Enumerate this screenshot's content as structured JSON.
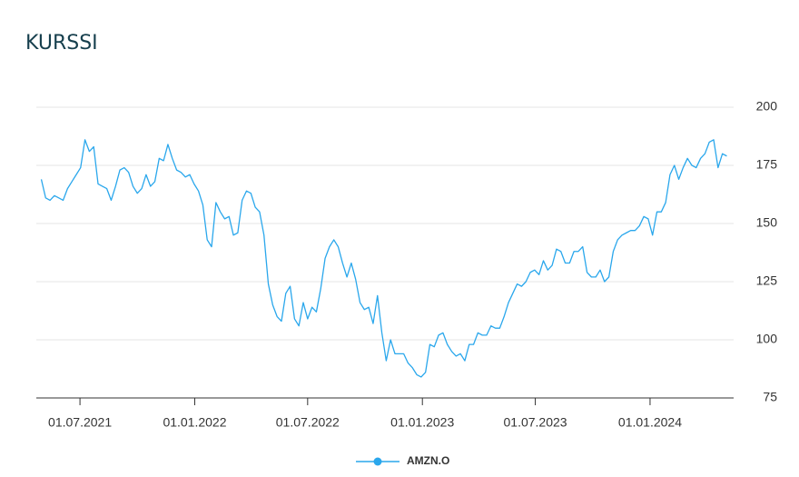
{
  "chart_data": {
    "type": "line",
    "title": "KURSSI",
    "x": [
      "30.04.2021",
      "07.05.2021",
      "14.05.2021",
      "21.05.2021",
      "28.05.2021",
      "04.06.2021",
      "11.06.2021",
      "18.06.2021",
      "25.06.2021",
      "02.07.2021",
      "09.07.2021",
      "16.07.2021",
      "23.07.2021",
      "30.07.2021",
      "06.08.2021",
      "13.08.2021",
      "20.08.2021",
      "27.08.2021",
      "03.09.2021",
      "10.09.2021",
      "17.09.2021",
      "24.09.2021",
      "01.10.2021",
      "08.10.2021",
      "15.10.2021",
      "22.10.2021",
      "29.10.2021",
      "05.11.2021",
      "12.11.2021",
      "19.11.2021",
      "26.11.2021",
      "03.12.2021",
      "10.12.2021",
      "17.12.2021",
      "24.12.2021",
      "31.12.2021",
      "07.01.2022",
      "14.01.2022",
      "21.01.2022",
      "28.01.2022",
      "04.02.2022",
      "11.02.2022",
      "18.02.2022",
      "25.02.2022",
      "04.03.2022",
      "11.03.2022",
      "18.03.2022",
      "25.03.2022",
      "01.04.2022",
      "08.04.2022",
      "15.04.2022",
      "22.04.2022",
      "29.04.2022",
      "06.05.2022",
      "13.05.2022",
      "20.05.2022",
      "27.05.2022",
      "03.06.2022",
      "10.06.2022",
      "17.06.2022",
      "24.06.2022",
      "01.07.2022",
      "08.07.2022",
      "15.07.2022",
      "22.07.2022",
      "29.07.2022",
      "05.08.2022",
      "12.08.2022",
      "19.08.2022",
      "26.08.2022",
      "02.09.2022",
      "09.09.2022",
      "16.09.2022",
      "23.09.2022",
      "30.09.2022",
      "07.10.2022",
      "14.10.2022",
      "21.10.2022",
      "28.10.2022",
      "04.11.2022",
      "11.11.2022",
      "18.11.2022",
      "25.11.2022",
      "02.12.2022",
      "09.12.2022",
      "16.12.2022",
      "23.12.2022",
      "30.12.2022",
      "06.01.2023",
      "13.01.2023",
      "20.01.2023",
      "27.01.2023",
      "03.02.2023",
      "10.02.2023",
      "17.02.2023",
      "24.02.2023",
      "03.03.2023",
      "10.03.2023",
      "17.03.2023",
      "24.03.2023",
      "31.03.2023",
      "07.04.2023",
      "14.04.2023",
      "21.04.2023",
      "28.04.2023",
      "05.05.2023",
      "12.05.2023",
      "19.05.2023",
      "26.05.2023",
      "02.06.2023",
      "09.06.2023",
      "16.06.2023",
      "23.06.2023",
      "30.06.2023",
      "07.07.2023",
      "14.07.2023",
      "21.07.2023",
      "28.07.2023",
      "04.08.2023",
      "11.08.2023",
      "18.08.2023",
      "25.08.2023",
      "01.09.2023",
      "08.09.2023",
      "15.09.2023",
      "22.09.2023",
      "29.09.2023",
      "06.10.2023",
      "13.10.2023",
      "20.10.2023",
      "27.10.2023",
      "03.11.2023",
      "10.11.2023",
      "17.11.2023",
      "24.11.2023",
      "01.12.2023",
      "08.12.2023",
      "15.12.2023",
      "22.12.2023",
      "29.12.2023",
      "05.01.2024",
      "12.01.2024",
      "19.01.2024",
      "26.01.2024",
      "02.02.2024",
      "09.02.2024",
      "16.02.2024",
      "23.02.2024",
      "01.03.2024",
      "08.03.2024",
      "15.03.2024",
      "22.03.2024",
      "29.03.2024",
      "05.04.2024",
      "12.04.2024",
      "19.04.2024",
      "26.04.2024",
      "03.05.2024"
    ],
    "series": [
      {
        "name": "AMZN.O",
        "color": "#2aa7ec",
        "values": [
          169,
          161,
          160,
          162,
          161,
          160,
          165,
          168,
          171,
          174,
          186,
          181,
          183,
          167,
          166,
          165,
          160,
          166,
          173,
          174,
          172,
          166,
          163,
          165,
          171,
          166,
          168,
          178,
          177,
          184,
          178,
          173,
          172,
          170,
          171,
          167,
          164,
          158,
          143,
          140,
          159,
          155,
          152,
          153,
          145,
          146,
          160,
          164,
          163,
          157,
          155,
          145,
          124,
          115,
          110,
          108,
          120,
          123,
          109,
          106,
          116,
          109,
          114,
          112,
          122,
          135,
          140,
          143,
          140,
          133,
          127,
          133,
          126,
          116,
          113,
          114,
          107,
          119,
          103,
          91,
          100,
          94,
          94,
          94,
          90,
          88,
          85,
          84,
          86,
          98,
          97,
          102,
          103,
          98,
          95,
          93,
          94,
          91,
          98,
          98,
          103,
          102,
          102,
          106,
          105,
          105,
          110,
          116,
          120,
          124,
          123,
          125,
          129,
          130,
          128,
          134,
          130,
          132,
          139,
          138,
          133,
          133,
          138,
          138,
          140,
          129,
          127,
          127,
          130,
          125,
          127,
          138,
          143,
          145,
          146,
          147,
          147,
          149,
          153,
          152,
          145,
          155,
          155,
          159,
          171,
          175,
          169,
          174,
          178,
          175,
          174,
          178,
          180,
          185,
          186,
          174,
          180,
          179
        ]
      }
    ],
    "xlim": [
      "22.04.2021",
      "14.05.2024"
    ],
    "xticks": [
      "01.07.2021",
      "01.01.2022",
      "01.07.2022",
      "01.01.2023",
      "01.07.2023",
      "01.01.2024"
    ],
    "ylim": [
      75,
      200
    ],
    "yticks": [
      75,
      100,
      125,
      150,
      175,
      200
    ],
    "grid": true
  }
}
